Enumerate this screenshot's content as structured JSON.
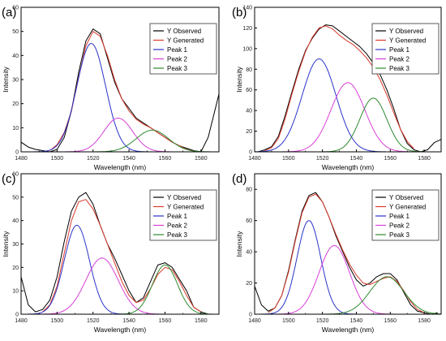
{
  "chart_data": [
    {
      "panel_label": "(a)",
      "type": "line",
      "xlabel": "Wavelength (nm)",
      "ylabel": "Intensity",
      "xlim": [
        1480,
        1590
      ],
      "ylim": [
        0,
        60
      ],
      "xticks": [
        1480,
        1500,
        1520,
        1540,
        1560,
        1580
      ],
      "yticks": [
        0,
        10,
        20,
        30,
        40,
        50,
        60
      ],
      "legend_position": "top-right",
      "series": [
        {
          "name": "Y Observed",
          "color": "#000000",
          "x": [
            1480,
            1484,
            1488,
            1492,
            1496,
            1500,
            1504,
            1508,
            1512,
            1516,
            1520,
            1524,
            1528,
            1532,
            1536,
            1540,
            1544,
            1548,
            1552,
            1556,
            1560,
            1564,
            1568,
            1572,
            1576,
            1580,
            1584,
            1588,
            1590
          ],
          "y": [
            4,
            2,
            1,
            0.5,
            0,
            1,
            6,
            17,
            33,
            46,
            51,
            49,
            39,
            29,
            22,
            18,
            14,
            12,
            10,
            8,
            6,
            4,
            2.5,
            1.5,
            0.5,
            0,
            6,
            18,
            24
          ]
        },
        {
          "name": "Y Generated",
          "color": "#d93a2b",
          "x": [
            1496,
            1500,
            1504,
            1508,
            1512,
            1516,
            1520,
            1524,
            1528,
            1532,
            1536,
            1540,
            1544,
            1548,
            1552,
            1556,
            1560,
            1564,
            1568,
            1572,
            1576
          ],
          "y": [
            0.5,
            3,
            8,
            17,
            31,
            44,
            50,
            48,
            40,
            30,
            22,
            17,
            13.5,
            11.5,
            10,
            8,
            6,
            4,
            2.5,
            1,
            0.3
          ]
        },
        {
          "name": "Peak 1",
          "color": "#2b33c9",
          "model": "gauss",
          "amp": 45,
          "center": 1519,
          "sigma": 8
        },
        {
          "name": "Peak 2",
          "color": "#d83fd8",
          "model": "gauss",
          "amp": 14,
          "center": 1534,
          "sigma": 8
        },
        {
          "name": "Peak 3",
          "color": "#2f8a2f",
          "model": "gauss",
          "amp": 9,
          "center": 1553,
          "sigma": 9
        }
      ]
    },
    {
      "panel_label": "(b)",
      "type": "line",
      "xlabel": "Wavelength (nm)",
      "ylabel": "Intensity",
      "xlim": [
        1480,
        1590
      ],
      "ylim": [
        0,
        140
      ],
      "xticks": [
        1480,
        1500,
        1520,
        1540,
        1560,
        1580
      ],
      "yticks": [
        0,
        20,
        40,
        60,
        80,
        100,
        120,
        140
      ],
      "legend_position": "top-right",
      "series": [
        {
          "name": "Y Observed",
          "color": "#000000",
          "x": [
            1482,
            1486,
            1490,
            1494,
            1498,
            1502,
            1506,
            1510,
            1514,
            1518,
            1522,
            1526,
            1530,
            1534,
            1538,
            1542,
            1546,
            1550,
            1554,
            1558,
            1562,
            1566,
            1570,
            1574,
            1578,
            1582,
            1586,
            1590
          ],
          "y": [
            0,
            2,
            5,
            15,
            35,
            58,
            80,
            98,
            110,
            119,
            123,
            122,
            117,
            112,
            107,
            102,
            95,
            86,
            75,
            60,
            42,
            22,
            8,
            2,
            0,
            2,
            9,
            12
          ]
        },
        {
          "name": "Y Generated",
          "color": "#d93a2b",
          "x": [
            1486,
            1490,
            1494,
            1498,
            1502,
            1506,
            1510,
            1514,
            1518,
            1522,
            1526,
            1530,
            1534,
            1538,
            1542,
            1546,
            1550,
            1554,
            1558,
            1562,
            1566,
            1570,
            1574
          ],
          "y": [
            1,
            4,
            13,
            32,
            56,
            78,
            97,
            111,
            120,
            122,
            119,
            113,
            108,
            104,
            98,
            91,
            82,
            70,
            55,
            38,
            22,
            10,
            3
          ]
        },
        {
          "name": "Peak 1",
          "color": "#2b33c9",
          "model": "gauss",
          "amp": 90,
          "center": 1518,
          "sigma": 10
        },
        {
          "name": "Peak 2",
          "color": "#d83fd8",
          "model": "gauss",
          "amp": 67,
          "center": 1535,
          "sigma": 10
        },
        {
          "name": "Peak 3",
          "color": "#2f8a2f",
          "model": "gauss",
          "amp": 52,
          "center": 1550,
          "sigma": 8
        }
      ]
    },
    {
      "panel_label": "(c)",
      "type": "line",
      "xlabel": "Wavelength (nm)",
      "ylabel": "Intensity",
      "xlim": [
        1480,
        1590
      ],
      "ylim": [
        0,
        60
      ],
      "xticks": [
        1480,
        1500,
        1520,
        1540,
        1560,
        1580
      ],
      "yticks": [
        0,
        10,
        20,
        30,
        40,
        50,
        60
      ],
      "legend_position": "top-right",
      "series": [
        {
          "name": "Y Observed",
          "color": "#000000",
          "x": [
            1480,
            1484,
            1488,
            1492,
            1496,
            1500,
            1504,
            1508,
            1512,
            1516,
            1520,
            1524,
            1528,
            1532,
            1536,
            1540,
            1544,
            1548,
            1552,
            1556,
            1560,
            1564,
            1568,
            1572,
            1576,
            1580,
            1584,
            1588
          ],
          "y": [
            16,
            4,
            1,
            2,
            6,
            16,
            31,
            44,
            50,
            52,
            47,
            38,
            30,
            24,
            17,
            10,
            5,
            7,
            14,
            21,
            22,
            20,
            15,
            10,
            3,
            1,
            0,
            0
          ]
        },
        {
          "name": "Y Generated",
          "color": "#d93a2b",
          "x": [
            1492,
            1496,
            1500,
            1504,
            1508,
            1512,
            1516,
            1520,
            1524,
            1528,
            1532,
            1536,
            1540,
            1544,
            1548,
            1552,
            1556,
            1560,
            1564,
            1568,
            1572,
            1576,
            1580
          ],
          "y": [
            1,
            4,
            12,
            26,
            40,
            48,
            49,
            45,
            38,
            30,
            22,
            14,
            8,
            5,
            6,
            11,
            17,
            20,
            19,
            14,
            8,
            3,
            1
          ]
        },
        {
          "name": "Peak 1",
          "color": "#2b33c9",
          "model": "gauss",
          "amp": 38,
          "center": 1511,
          "sigma": 7
        },
        {
          "name": "Peak 2",
          "color": "#d83fd8",
          "model": "gauss",
          "amp": 24,
          "center": 1525,
          "sigma": 9
        },
        {
          "name": "Peak 3",
          "color": "#2f8a2f",
          "model": "gauss",
          "amp": 21,
          "center": 1560,
          "sigma": 7
        }
      ]
    },
    {
      "panel_label": "(d)",
      "type": "line",
      "xlabel": "Wavelength (nm)",
      "ylabel": "Intensity",
      "xlim": [
        1480,
        1590
      ],
      "ylim": [
        0,
        90
      ],
      "xticks": [
        1480,
        1500,
        1520,
        1540,
        1560,
        1580
      ],
      "yticks": [
        0,
        20,
        40,
        60,
        80
      ],
      "legend_position": "top-right",
      "series": [
        {
          "name": "Y Observed",
          "color": "#000000",
          "x": [
            1480,
            1484,
            1488,
            1492,
            1496,
            1500,
            1504,
            1508,
            1512,
            1516,
            1520,
            1524,
            1528,
            1532,
            1536,
            1540,
            1544,
            1548,
            1552,
            1556,
            1560,
            1564,
            1568,
            1572,
            1576,
            1580,
            1584,
            1588
          ],
          "y": [
            18,
            6,
            2,
            4,
            12,
            28,
            48,
            66,
            76,
            78,
            72,
            62,
            50,
            40,
            30,
            22,
            18,
            20,
            24,
            26,
            26,
            22,
            14,
            6,
            2,
            1,
            0,
            1
          ]
        },
        {
          "name": "Y Generated",
          "color": "#d93a2b",
          "x": [
            1488,
            1492,
            1496,
            1500,
            1504,
            1508,
            1512,
            1516,
            1520,
            1524,
            1528,
            1532,
            1536,
            1540,
            1544,
            1548,
            1552,
            1556,
            1560,
            1564,
            1568,
            1572,
            1576,
            1580
          ],
          "y": [
            1,
            4,
            12,
            27,
            47,
            65,
            75,
            77,
            72,
            62,
            51,
            41,
            32,
            25,
            20,
            19,
            21,
            23,
            24,
            21,
            15,
            8,
            3,
            1
          ]
        },
        {
          "name": "Peak 1",
          "color": "#2b33c9",
          "model": "gauss",
          "amp": 60,
          "center": 1512,
          "sigma": 7
        },
        {
          "name": "Peak 2",
          "color": "#d83fd8",
          "model": "gauss",
          "amp": 44,
          "center": 1527,
          "sigma": 9
        },
        {
          "name": "Peak 3",
          "color": "#2f8a2f",
          "model": "gauss",
          "amp": 24,
          "center": 1558,
          "sigma": 10
        }
      ]
    }
  ]
}
